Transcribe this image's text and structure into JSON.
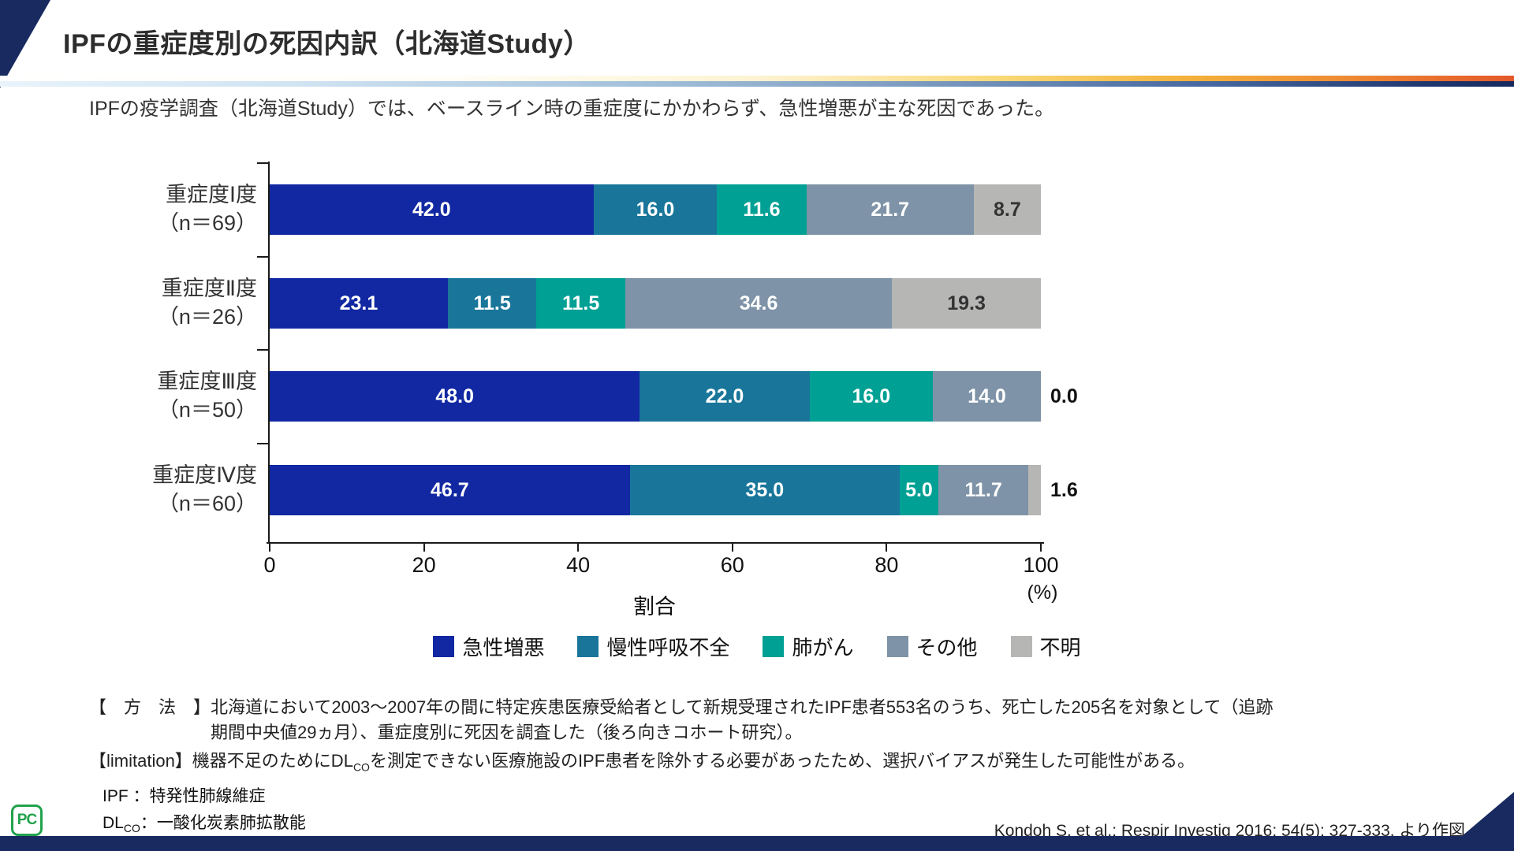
{
  "header": {
    "title": "IPFの重症度別の死因内訳（北海道Study）"
  },
  "subtitle": "IPFの疫学調査（北海道Study）では、ベースライン時の重症度にかかわらず、急性増悪が主な死因であった。",
  "chart_data": {
    "type": "bar",
    "orientation": "horizontal",
    "stacked": true,
    "unit": "%",
    "xlabel": "割合",
    "x_unit": "(%)",
    "xlim": [
      0,
      100
    ],
    "x_ticks": [
      0,
      20,
      40,
      60,
      80,
      100
    ],
    "grid": false,
    "legend_position": "bottom",
    "categories": [
      {
        "label": "重症度Ⅰ度",
        "n_label": "（n＝69）"
      },
      {
        "label": "重症度Ⅱ度",
        "n_label": "（n＝26）"
      },
      {
        "label": "重症度Ⅲ度",
        "n_label": "（n＝50）"
      },
      {
        "label": "重症度Ⅳ度",
        "n_label": "（n＝60）"
      }
    ],
    "series": [
      {
        "name": "急性増悪",
        "color": "#1128a2",
        "values": [
          42.0,
          23.1,
          48.0,
          46.7
        ]
      },
      {
        "name": "慢性呼吸不全",
        "color": "#19769a",
        "values": [
          16.0,
          11.5,
          22.0,
          35.0
        ]
      },
      {
        "name": "肺がん",
        "color": "#00a094",
        "values": [
          11.6,
          11.5,
          16.0,
          5.0
        ]
      },
      {
        "name": "その他",
        "color": "#7e93a7",
        "values": [
          21.7,
          34.6,
          14.0,
          11.7
        ]
      },
      {
        "name": "不明",
        "color": "#b6b6b5",
        "values": [
          8.7,
          19.3,
          0.0,
          1.6
        ]
      }
    ]
  },
  "footnotes": {
    "method_label": "【　方　法　】",
    "method_line1": "北海道において2003～2007年の間に特定疾患医療受給者として新規受理されたIPF患者553名のうち、死亡した205名を対象として（追跡",
    "method_line2": "期間中央値29ヵ月）、重症度別に死因を調査した（後ろ向きコホート研究）。",
    "limitation_prefix": "【limitation】機器不足のためにDL",
    "limitation_sub": "CO",
    "limitation_suffix": "を測定できない医療施設のIPF患者を除外する必要があったため、選択バイアスが発生した可能性がある。"
  },
  "abbreviations": {
    "ipf": "IPF ：特発性肺線維症",
    "dlco_prefix": "DL",
    "dlco_sub": "CO",
    "dlco_suffix": "：一酸化炭素肺拡散能"
  },
  "citation": "Kondoh S. et al.: Respir Investig 2016; 54(5): 327-333. より作図",
  "logo_text": "PC",
  "colors": {
    "accent_navy": "#182a60",
    "axis": "#1a1a1a",
    "inside_label_light": "#ffffff",
    "inside_label_dark": "#333333"
  }
}
